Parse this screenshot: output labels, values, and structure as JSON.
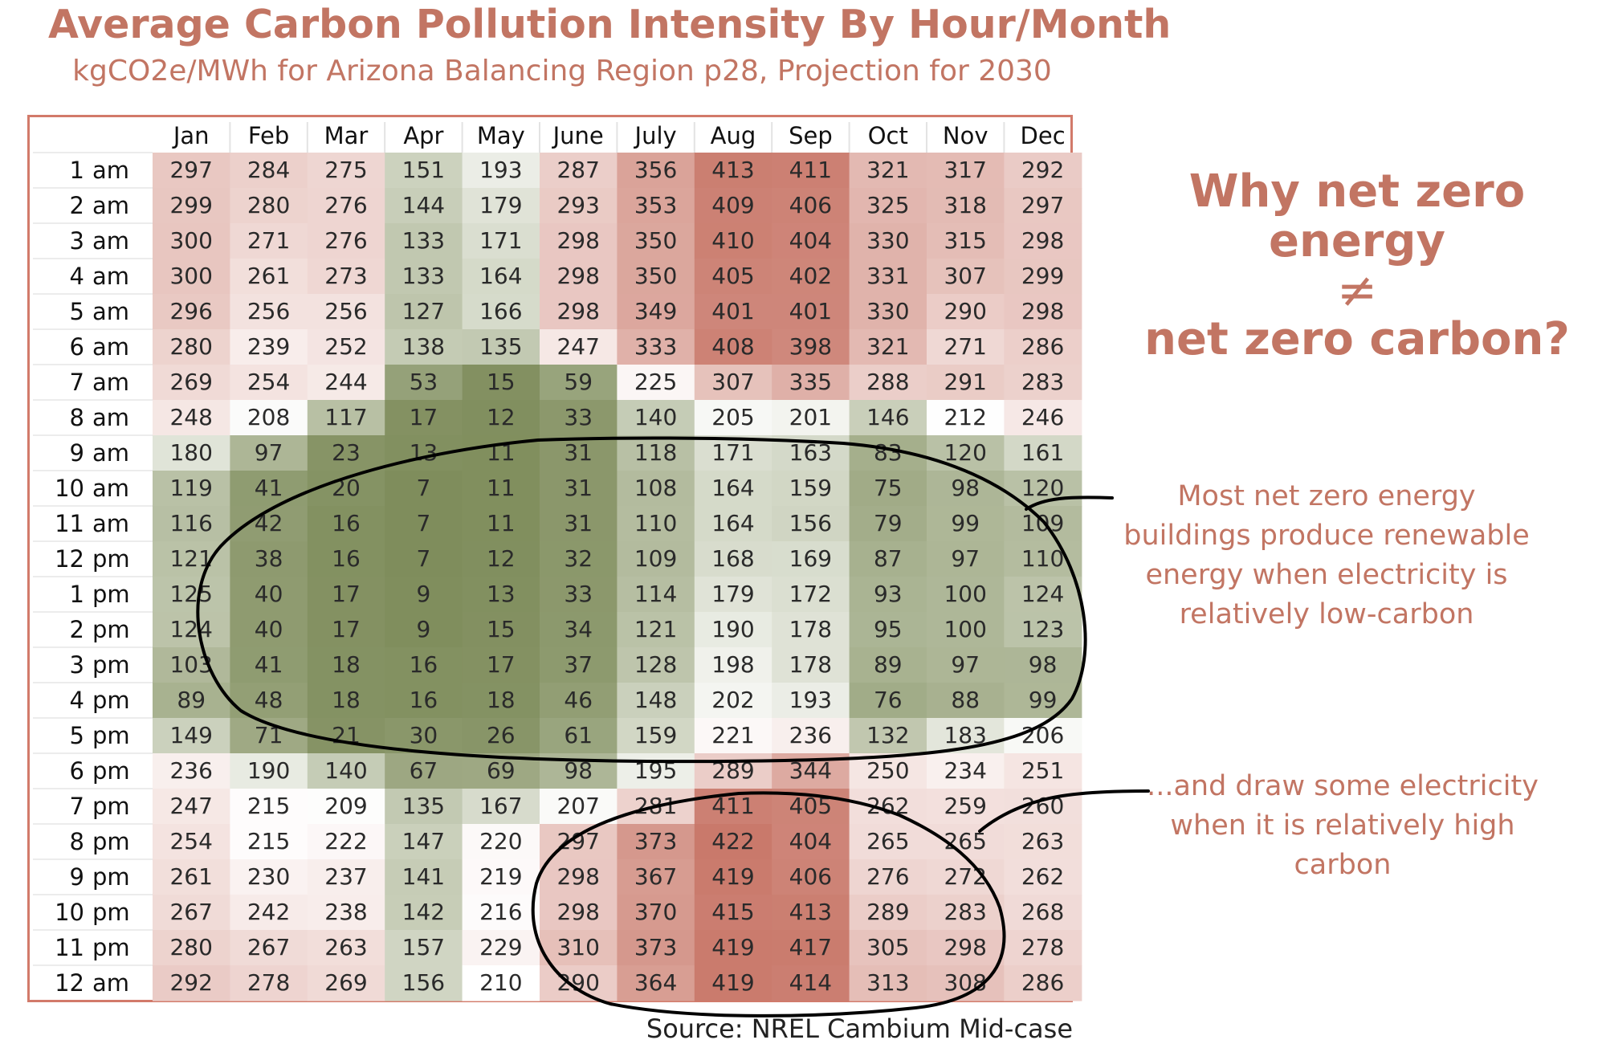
{
  "title": "Average Carbon Pollution Intensity By Hour/Month",
  "subtitle": "kgCO2e/MWh for Arizona Balancing Region p28, Projection for 2030",
  "source": "Source: NREL Cambium Mid-case",
  "callout": {
    "line1": "Why net zero energy",
    "neq": "≠",
    "line2": "net zero carbon?"
  },
  "notes": {
    "low_carbon": "Most net zero energy buildings produce renewable energy when electricity is relatively low-carbon",
    "high_carbon": "...and draw some electricity when it is relatively high carbon"
  },
  "colors": {
    "accent": "#c27563",
    "frame": "#d27a6a",
    "high": "#c9796b",
    "mid": "#ffffff",
    "low": "#7f8d5c",
    "ink": "#000000"
  },
  "chart_data": {
    "type": "heatmap",
    "columns": [
      "Jan",
      "Feb",
      "Mar",
      "Apr",
      "May",
      "June",
      "July",
      "Aug",
      "Sep",
      "Oct",
      "Nov",
      "Dec"
    ],
    "rows": [
      {
        "num": "1",
        "ampm": "am"
      },
      {
        "num": "2",
        "ampm": "am"
      },
      {
        "num": "3",
        "ampm": "am"
      },
      {
        "num": "4",
        "ampm": "am"
      },
      {
        "num": "5",
        "ampm": "am"
      },
      {
        "num": "6",
        "ampm": "am"
      },
      {
        "num": "7",
        "ampm": "am"
      },
      {
        "num": "8",
        "ampm": "am"
      },
      {
        "num": "9",
        "ampm": "am"
      },
      {
        "num": "10",
        "ampm": "am"
      },
      {
        "num": "11",
        "ampm": "am"
      },
      {
        "num": "12",
        "ampm": "pm"
      },
      {
        "num": "1",
        "ampm": "pm"
      },
      {
        "num": "2",
        "ampm": "pm"
      },
      {
        "num": "3",
        "ampm": "pm"
      },
      {
        "num": "4",
        "ampm": "pm"
      },
      {
        "num": "5",
        "ampm": "pm"
      },
      {
        "num": "6",
        "ampm": "pm"
      },
      {
        "num": "7",
        "ampm": "pm"
      },
      {
        "num": "8",
        "ampm": "pm"
      },
      {
        "num": "9",
        "ampm": "pm"
      },
      {
        "num": "10",
        "ampm": "pm"
      },
      {
        "num": "11",
        "ampm": "pm"
      },
      {
        "num": "12",
        "ampm": "am"
      }
    ],
    "values": [
      [
        297,
        284,
        275,
        151,
        193,
        287,
        356,
        413,
        411,
        321,
        317,
        292
      ],
      [
        299,
        280,
        276,
        144,
        179,
        293,
        353,
        409,
        406,
        325,
        318,
        297
      ],
      [
        300,
        271,
        276,
        133,
        171,
        298,
        350,
        410,
        404,
        330,
        315,
        298
      ],
      [
        300,
        261,
        273,
        133,
        164,
        298,
        350,
        405,
        402,
        331,
        307,
        299
      ],
      [
        296,
        256,
        256,
        127,
        166,
        298,
        349,
        401,
        401,
        330,
        290,
        298
      ],
      [
        280,
        239,
        252,
        138,
        135,
        247,
        333,
        408,
        398,
        321,
        271,
        286
      ],
      [
        269,
        254,
        244,
        53,
        15,
        59,
        225,
        307,
        335,
        288,
        291,
        283
      ],
      [
        248,
        208,
        117,
        17,
        12,
        33,
        140,
        205,
        201,
        146,
        212,
        246
      ],
      [
        180,
        97,
        23,
        13,
        11,
        31,
        118,
        171,
        163,
        83,
        120,
        161
      ],
      [
        119,
        41,
        20,
        7,
        11,
        31,
        108,
        164,
        159,
        75,
        98,
        120
      ],
      [
        116,
        42,
        16,
        7,
        11,
        31,
        110,
        164,
        156,
        79,
        99,
        109
      ],
      [
        121,
        38,
        16,
        7,
        12,
        32,
        109,
        168,
        169,
        87,
        97,
        110
      ],
      [
        125,
        40,
        17,
        9,
        13,
        33,
        114,
        179,
        172,
        93,
        100,
        124
      ],
      [
        124,
        40,
        17,
        9,
        15,
        34,
        121,
        190,
        178,
        95,
        100,
        123
      ],
      [
        103,
        41,
        18,
        16,
        17,
        37,
        128,
        198,
        178,
        89,
        97,
        98
      ],
      [
        89,
        48,
        18,
        16,
        18,
        46,
        148,
        202,
        193,
        76,
        88,
        99
      ],
      [
        149,
        71,
        21,
        30,
        26,
        61,
        159,
        221,
        236,
        132,
        183,
        206
      ],
      [
        236,
        190,
        140,
        67,
        69,
        98,
        195,
        289,
        344,
        250,
        234,
        251
      ],
      [
        247,
        215,
        209,
        135,
        167,
        207,
        281,
        411,
        405,
        262,
        259,
        260
      ],
      [
        254,
        215,
        222,
        147,
        220,
        297,
        373,
        422,
        404,
        265,
        265,
        263
      ],
      [
        261,
        230,
        237,
        141,
        219,
        298,
        367,
        419,
        406,
        276,
        272,
        262
      ],
      [
        267,
        242,
        238,
        142,
        216,
        298,
        370,
        415,
        413,
        289,
        283,
        268
      ],
      [
        280,
        267,
        263,
        157,
        229,
        310,
        373,
        419,
        417,
        305,
        298,
        278
      ],
      [
        292,
        278,
        269,
        156,
        210,
        290,
        364,
        419,
        414,
        313,
        308,
        286
      ]
    ]
  }
}
